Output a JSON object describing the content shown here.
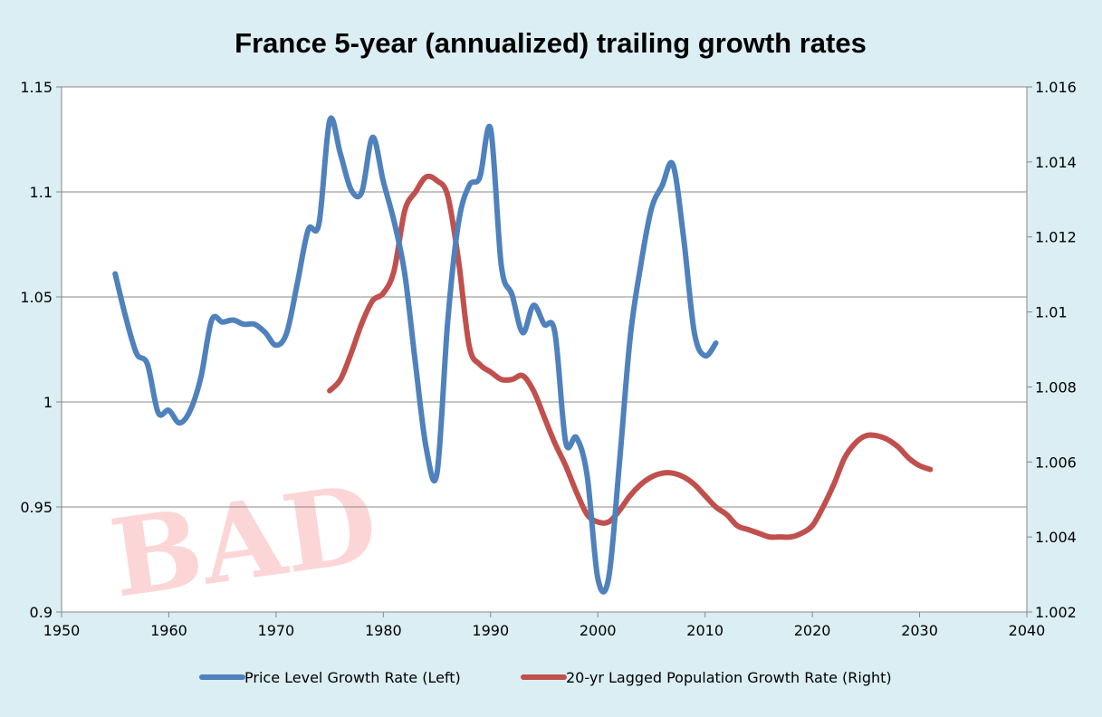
{
  "chart_data": {
    "type": "line",
    "title": "France 5-year (annualized) trailing growth rates",
    "xlabel": "",
    "ylabel": "",
    "xlim": [
      1950,
      2040
    ],
    "ylim_left": [
      0.9,
      1.15
    ],
    "ylim_right": [
      1.002,
      1.016
    ],
    "x_ticks": [
      "1950",
      "1960",
      "1970",
      "1980",
      "1990",
      "2000",
      "2010",
      "2020",
      "2030",
      "2040"
    ],
    "y_ticks_left": [
      "0.9",
      "0.95",
      "1",
      "1.05",
      "1.1",
      "1.15"
    ],
    "y_ticks_right": [
      "1.002",
      "1.004",
      "1.006",
      "1.008",
      "1.01",
      "1.012",
      "1.014",
      "1.016"
    ],
    "grid": "horizontal",
    "legend_position": "bottom",
    "watermark": "BAD",
    "series": [
      {
        "name": "Price Level Growth Rate (Left)",
        "axis": "left",
        "color": "#4f81bd",
        "x": [
          1955,
          1956,
          1957,
          1958,
          1959,
          1960,
          1961,
          1962,
          1963,
          1964,
          1965,
          1966,
          1967,
          1968,
          1969,
          1970,
          1971,
          1972,
          1973,
          1974,
          1975,
          1976,
          1977,
          1978,
          1979,
          1980,
          1981,
          1982,
          1983,
          1984,
          1985,
          1986,
          1987,
          1988,
          1989,
          1990,
          1991,
          1992,
          1993,
          1994,
          1995,
          1996,
          1997,
          1998,
          1999,
          2000,
          2001,
          2002,
          2003,
          2004,
          2005,
          2006,
          2007,
          2008,
          2009,
          2010,
          2011
        ],
        "values": [
          1.061,
          1.04,
          1.023,
          1.018,
          0.995,
          0.996,
          0.99,
          0.996,
          1.012,
          1.039,
          1.038,
          1.039,
          1.037,
          1.037,
          1.033,
          1.027,
          1.033,
          1.057,
          1.082,
          1.085,
          1.134,
          1.118,
          1.101,
          1.1,
          1.126,
          1.105,
          1.086,
          1.061,
          1.018,
          0.978,
          0.966,
          1.038,
          1.085,
          1.103,
          1.107,
          1.13,
          1.065,
          1.051,
          1.033,
          1.046,
          1.037,
          1.033,
          0.981,
          0.983,
          0.965,
          0.916,
          0.916,
          0.97,
          1.03,
          1.065,
          1.092,
          1.103,
          1.113,
          1.078,
          1.033,
          1.022,
          1.028
        ]
      },
      {
        "name": "20-yr Lagged Population Growth Rate (Right)",
        "axis": "right",
        "color": "#c0504d",
        "x": [
          1975,
          1976,
          1977,
          1978,
          1979,
          1980,
          1981,
          1982,
          1983,
          1984,
          1985,
          1986,
          1987,
          1988,
          1989,
          1990,
          1991,
          1992,
          1993,
          1994,
          1995,
          1996,
          1997,
          1998,
          1999,
          2000,
          2001,
          2002,
          2003,
          2004,
          2005,
          2006,
          2007,
          2008,
          2009,
          2010,
          2011,
          2012,
          2013,
          2014,
          2015,
          2016,
          2017,
          2018,
          2019,
          2020,
          2021,
          2022,
          2023,
          2024,
          2025,
          2026,
          2027,
          2028,
          2029,
          2030,
          2031
        ],
        "values": [
          1.0079,
          1.0082,
          1.0089,
          1.0097,
          1.0103,
          1.0105,
          1.0111,
          1.0127,
          1.0132,
          1.0136,
          1.0135,
          1.0131,
          1.0114,
          1.0091,
          1.0086,
          1.0084,
          1.0082,
          1.0082,
          1.0083,
          1.0079,
          1.0072,
          1.0065,
          1.0059,
          1.0052,
          1.0046,
          1.0044,
          1.0044,
          1.0047,
          1.0051,
          1.0054,
          1.0056,
          1.0057,
          1.0057,
          1.0056,
          1.0054,
          1.0051,
          1.0048,
          1.0046,
          1.0043,
          1.0042,
          1.0041,
          1.004,
          1.004,
          1.004,
          1.0041,
          1.0043,
          1.0048,
          1.0054,
          1.0061,
          1.0065,
          1.0067,
          1.0067,
          1.0066,
          1.0064,
          1.0061,
          1.0059,
          1.0058
        ]
      }
    ]
  }
}
